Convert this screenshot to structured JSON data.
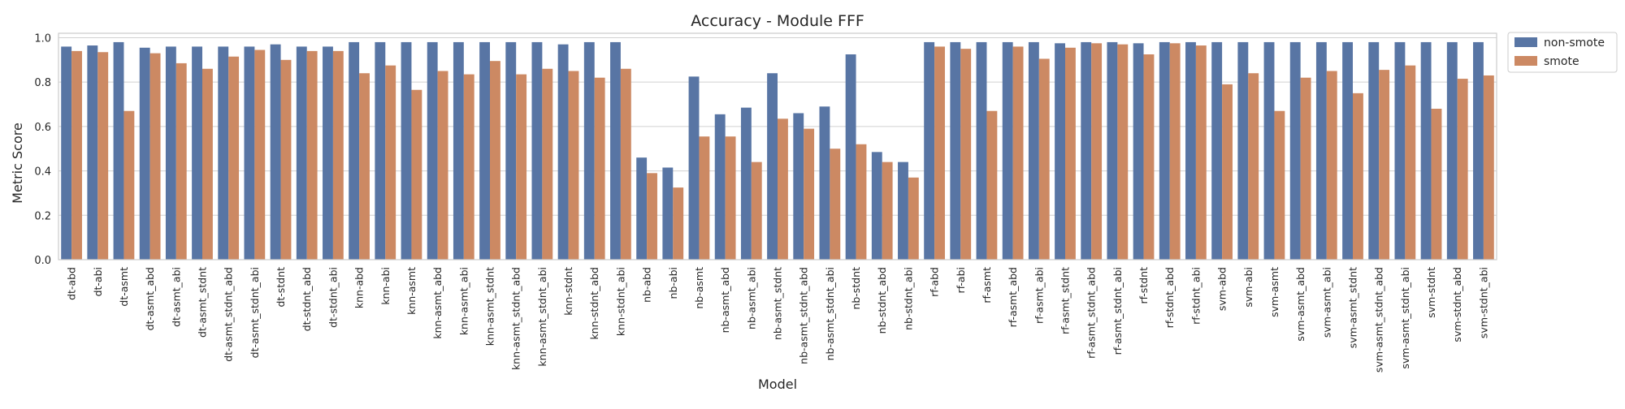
{
  "chart_data": {
    "type": "bar",
    "title": "Accuracy - Module FFF",
    "xlabel": "Model",
    "ylabel": "Metric Score",
    "ylim": [
      0,
      1.02
    ],
    "yticks": [
      0.0,
      0.2,
      0.4,
      0.6,
      0.8,
      1.0
    ],
    "ytick_labels": [
      "0.0",
      "0.2",
      "0.4",
      "0.6",
      "0.8",
      "1.0"
    ],
    "grid": true,
    "legend_position": "outside-top-right",
    "colors": {
      "non-smote": "#5875a4",
      "smote": "#cc8963"
    },
    "categories": [
      "dt-abd",
      "dt-abi",
      "dt-asmt",
      "dt-asmt_abd",
      "dt-asmt_abi",
      "dt-asmt_stdnt",
      "dt-asmt_stdnt_abd",
      "dt-asmt_stdnt_abi",
      "dt-stdnt",
      "dt-stdnt_abd",
      "dt-stdnt_abi",
      "knn-abd",
      "knn-abi",
      "knn-asmt",
      "knn-asmt_abd",
      "knn-asmt_abi",
      "knn-asmt_stdnt",
      "knn-asmt_stdnt_abd",
      "knn-asmt_stdnt_abi",
      "knn-stdnt",
      "knn-stdnt_abd",
      "knn-stdnt_abi",
      "nb-abd",
      "nb-abi",
      "nb-asmt",
      "nb-asmt_abd",
      "nb-asmt_abi",
      "nb-asmt_stdnt",
      "nb-asmt_stdnt_abd",
      "nb-asmt_stdnt_abi",
      "nb-stdnt",
      "nb-stdnt_abd",
      "nb-stdnt_abi",
      "rf-abd",
      "rf-abi",
      "rf-asmt",
      "rf-asmt_abd",
      "rf-asmt_abi",
      "rf-asmt_stdnt",
      "rf-asmt_stdnt_abd",
      "rf-asmt_stdnt_abi",
      "rf-stdnt",
      "rf-stdnt_abd",
      "rf-stdnt_abi",
      "svm-abd",
      "svm-abi",
      "svm-asmt",
      "svm-asmt_abd",
      "svm-asmt_abi",
      "svm-asmt_stdnt",
      "svm-asmt_stdnt_abd",
      "svm-asmt_stdnt_abi",
      "svm-stdnt",
      "svm-stdnt_abd",
      "svm-stdnt_abi"
    ],
    "series": [
      {
        "name": "non-smote",
        "values": [
          0.96,
          0.965,
          0.98,
          0.955,
          0.96,
          0.96,
          0.96,
          0.96,
          0.97,
          0.96,
          0.96,
          0.98,
          0.98,
          0.98,
          0.98,
          0.98,
          0.98,
          0.98,
          0.98,
          0.97,
          0.98,
          0.98,
          0.46,
          0.415,
          0.825,
          0.655,
          0.685,
          0.84,
          0.66,
          0.69,
          0.925,
          0.485,
          0.44,
          0.98,
          0.98,
          0.98,
          0.98,
          0.98,
          0.975,
          0.98,
          0.98,
          0.975,
          0.98,
          0.98,
          0.98,
          0.98,
          0.98,
          0.98,
          0.98,
          0.98,
          0.98,
          0.98,
          0.98,
          0.98,
          0.98
        ]
      },
      {
        "name": "smote",
        "values": [
          0.94,
          0.935,
          0.67,
          0.93,
          0.885,
          0.86,
          0.915,
          0.945,
          0.9,
          0.94,
          0.94,
          0.84,
          0.875,
          0.765,
          0.85,
          0.835,
          0.895,
          0.835,
          0.86,
          0.85,
          0.82,
          0.86,
          0.39,
          0.325,
          0.555,
          0.555,
          0.44,
          0.635,
          0.59,
          0.5,
          0.52,
          0.44,
          0.37,
          0.96,
          0.95,
          0.67,
          0.96,
          0.905,
          0.955,
          0.975,
          0.97,
          0.925,
          0.975,
          0.965,
          0.79,
          0.84,
          0.67,
          0.82,
          0.85,
          0.75,
          0.855,
          0.875,
          0.68,
          0.815,
          0.83
        ]
      }
    ]
  }
}
